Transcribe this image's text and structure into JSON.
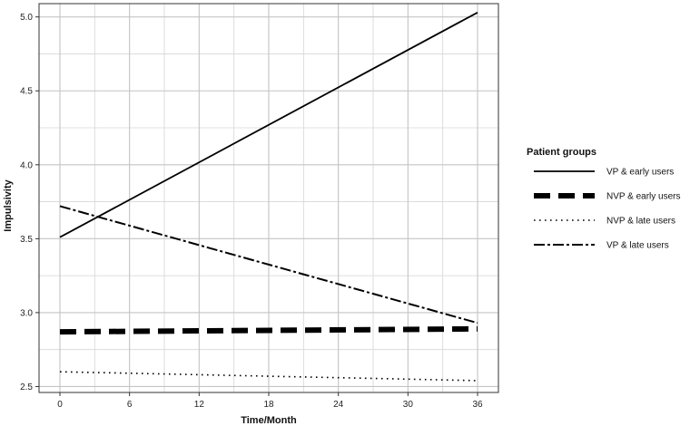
{
  "chart_data": {
    "type": "line",
    "title": "",
    "xlabel": "Time/Month",
    "ylabel": "Impulsivity",
    "xlim": [
      -1.8,
      37.8
    ],
    "ylim": [
      2.46,
      5.09
    ],
    "x_ticks": [
      "0",
      "6",
      "12",
      "18",
      "24",
      "30",
      "36"
    ],
    "x_tick_values": [
      0,
      6,
      12,
      18,
      24,
      30,
      36
    ],
    "y_ticks": [
      "2.5",
      "3.0",
      "3.5",
      "4.0",
      "4.5",
      "5.0"
    ],
    "y_tick_values": [
      2.5,
      3.0,
      3.5,
      4.0,
      4.5,
      5.0
    ],
    "grid": true,
    "legend_title": "Patient groups",
    "legend_position": "right",
    "series": [
      {
        "name": "VP & early users",
        "style": "solid",
        "color": "#000000",
        "x": [
          0,
          36
        ],
        "y": [
          3.51,
          5.03
        ]
      },
      {
        "name": "NVP & early users",
        "style": "thick-dashed",
        "color": "#000000",
        "x": [
          0,
          36
        ],
        "y": [
          2.87,
          2.89
        ]
      },
      {
        "name": "NVP & late users",
        "style": "dotted",
        "color": "#000000",
        "x": [
          0,
          36
        ],
        "y": [
          2.6,
          2.54
        ]
      },
      {
        "name": "VP & late users",
        "style": "dash-dot",
        "color": "#000000",
        "x": [
          0,
          36
        ],
        "y": [
          3.72,
          2.93
        ]
      }
    ]
  }
}
